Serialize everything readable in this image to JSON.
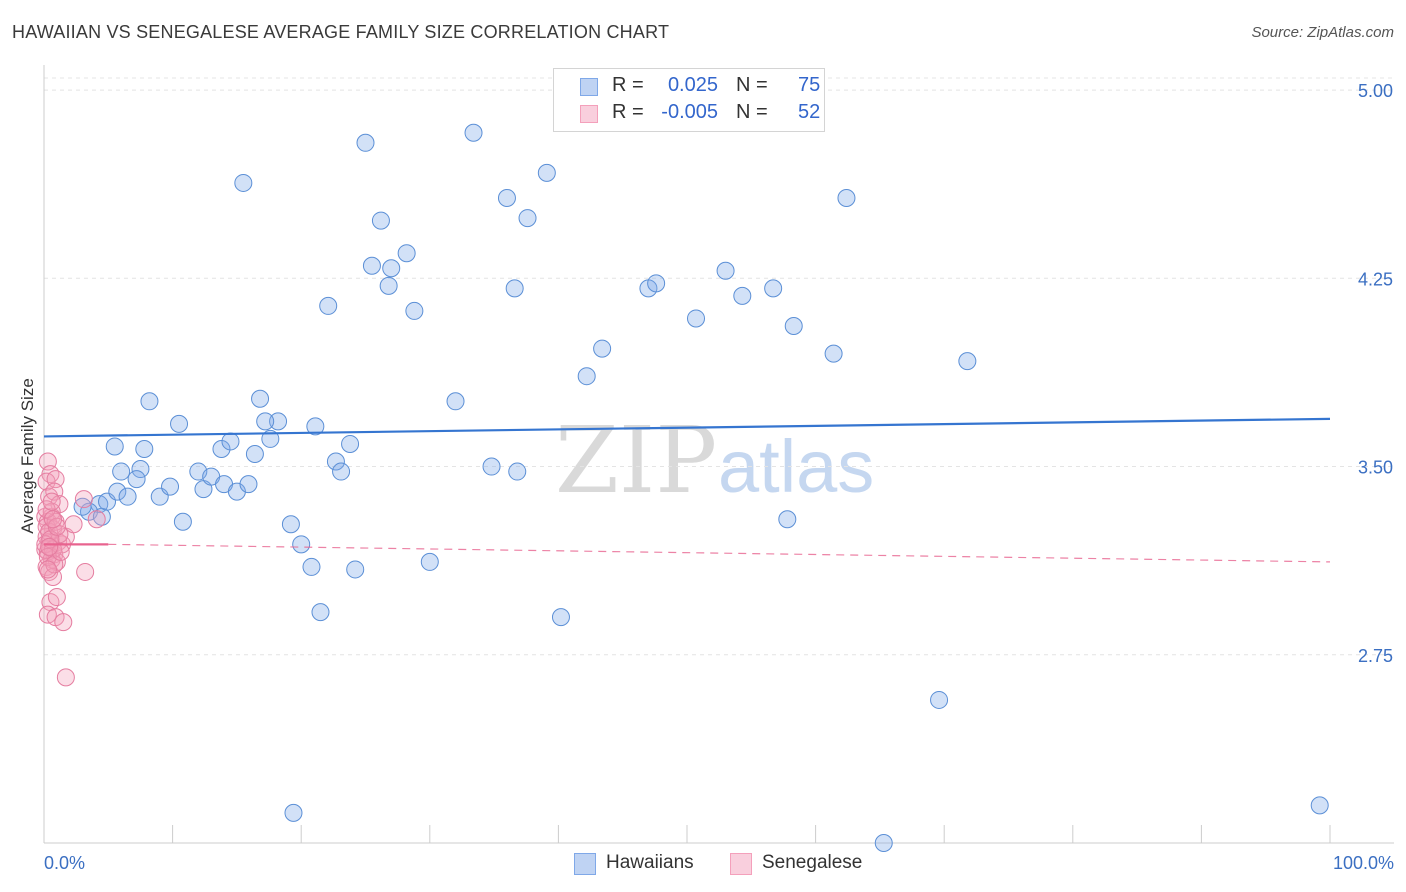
{
  "title": "HAWAIIAN VS SENEGALESE AVERAGE FAMILY SIZE CORRELATION CHART",
  "source": "Source: ZipAtlas.com",
  "watermark": {
    "zip": "ZIP",
    "atlas": "atlas"
  },
  "legend_box": {
    "rows": [
      {
        "r_label": "R =",
        "r_value": "0.025",
        "n_label": "N =",
        "n_value": "75",
        "color": "#7fa8e8"
      },
      {
        "r_label": "R =",
        "r_value": "-0.005",
        "n_label": "N =",
        "n_value": "52",
        "color": "#f4a0bb"
      }
    ]
  },
  "bottom_legend": {
    "items": [
      {
        "label": "Hawaiians",
        "color": "#7fa8e8"
      },
      {
        "label": "Senegalese",
        "color": "#f4a0bb"
      }
    ]
  },
  "chart_data": {
    "type": "scatter",
    "title": "HAWAIIAN VS SENEGALESE AVERAGE FAMILY SIZE CORRELATION CHART",
    "xlabel": "",
    "ylabel": "Average Family Size",
    "x_tick_labels": [
      "0.0%",
      "100.0%"
    ],
    "y_tick_labels": [
      "5.00",
      "4.25",
      "3.50",
      "2.75"
    ],
    "y_ticks": [
      5.0,
      4.25,
      3.5,
      2.75
    ],
    "xlim": [
      0,
      100
    ],
    "ylim": [
      2.0,
      5.08
    ],
    "grid": true,
    "legend_position": "top-center",
    "series": [
      {
        "name": "Hawaiians",
        "color": "#7fa8e8",
        "stroke": "#5b8fd6",
        "R": 0.025,
        "N": 75,
        "trend": {
          "x": [
            0,
            100
          ],
          "y": [
            3.62,
            3.69
          ],
          "style": "solid",
          "line_color": "#3575d0"
        },
        "points": [
          [
            4.3,
            3.35
          ],
          [
            3.5,
            3.32
          ],
          [
            3.0,
            3.34
          ],
          [
            4.5,
            3.3
          ],
          [
            4.9,
            3.36
          ],
          [
            5.5,
            3.58
          ],
          [
            6.0,
            3.48
          ],
          [
            5.7,
            3.4
          ],
          [
            6.5,
            3.38
          ],
          [
            7.5,
            3.49
          ],
          [
            7.2,
            3.45
          ],
          [
            8.2,
            3.76
          ],
          [
            9.0,
            3.38
          ],
          [
            7.8,
            3.57
          ],
          [
            9.8,
            3.42
          ],
          [
            10.8,
            3.28
          ],
          [
            10.5,
            3.67
          ],
          [
            12.0,
            3.48
          ],
          [
            12.4,
            3.41
          ],
          [
            13.0,
            3.46
          ],
          [
            13.8,
            3.57
          ],
          [
            14.0,
            3.43
          ],
          [
            14.5,
            3.6
          ],
          [
            15.0,
            3.4
          ],
          [
            15.9,
            3.43
          ],
          [
            16.4,
            3.55
          ],
          [
            16.8,
            3.77
          ],
          [
            17.6,
            3.61
          ],
          [
            18.2,
            3.68
          ],
          [
            15.5,
            4.63
          ],
          [
            17.2,
            3.68
          ],
          [
            19.2,
            3.27
          ],
          [
            20.0,
            3.19
          ],
          [
            21.1,
            3.66
          ],
          [
            20.8,
            3.1
          ],
          [
            22.1,
            4.14
          ],
          [
            23.8,
            3.59
          ],
          [
            21.5,
            2.92
          ],
          [
            24.2,
            3.09
          ],
          [
            22.7,
            3.52
          ],
          [
            23.1,
            3.48
          ],
          [
            25.5,
            4.3
          ],
          [
            26.8,
            4.22
          ],
          [
            28.8,
            4.12
          ],
          [
            26.2,
            4.48
          ],
          [
            28.2,
            4.35
          ],
          [
            27.0,
            4.29
          ],
          [
            30.0,
            3.12
          ],
          [
            32.0,
            3.76
          ],
          [
            33.4,
            4.83
          ],
          [
            34.8,
            3.5
          ],
          [
            36.0,
            4.57
          ],
          [
            36.6,
            4.21
          ],
          [
            36.8,
            3.48
          ],
          [
            37.6,
            4.49
          ],
          [
            39.1,
            4.67
          ],
          [
            40.2,
            2.9
          ],
          [
            42.2,
            3.86
          ],
          [
            43.4,
            3.97
          ],
          [
            47.0,
            4.21
          ],
          [
            47.6,
            4.23
          ],
          [
            50.7,
            4.09
          ],
          [
            53.0,
            4.28
          ],
          [
            54.3,
            4.18
          ],
          [
            56.7,
            4.21
          ],
          [
            58.3,
            4.06
          ],
          [
            57.8,
            3.29
          ],
          [
            61.4,
            3.95
          ],
          [
            62.4,
            4.57
          ],
          [
            69.6,
            2.57
          ],
          [
            71.8,
            3.92
          ],
          [
            99.2,
            2.15
          ],
          [
            19.4,
            2.12
          ],
          [
            25.0,
            4.79
          ],
          [
            65.3,
            2.0
          ]
        ]
      },
      {
        "name": "Senegalese",
        "color": "#f4a0bb",
        "stroke": "#e57da0",
        "R": -0.005,
        "N": 52,
        "trend": {
          "x": [
            0,
            5
          ],
          "y": [
            3.19,
            3.19
          ],
          "style": "solid",
          "line_color": "#e8638f",
          "ext_x": [
            5,
            100
          ],
          "ext_y": [
            3.19,
            3.12
          ],
          "ext_style": "dashed"
        },
        "points": [
          [
            0.3,
            3.52
          ],
          [
            0.5,
            3.47
          ],
          [
            0.2,
            3.44
          ],
          [
            0.9,
            3.45
          ],
          [
            0.4,
            3.38
          ],
          [
            0.8,
            3.4
          ],
          [
            1.2,
            3.35
          ],
          [
            0.6,
            3.3
          ],
          [
            0.1,
            3.3
          ],
          [
            0.3,
            3.28
          ],
          [
            0.7,
            3.25
          ],
          [
            0.2,
            3.22
          ],
          [
            0.4,
            3.2
          ],
          [
            0.5,
            3.18
          ],
          [
            0.1,
            3.17
          ],
          [
            0.3,
            3.16
          ],
          [
            0.8,
            3.15
          ],
          [
            0.6,
            3.13
          ],
          [
            0.2,
            3.1
          ],
          [
            1.0,
            3.12
          ],
          [
            0.4,
            3.08
          ],
          [
            0.7,
            3.06
          ],
          [
            1.1,
            3.2
          ],
          [
            1.4,
            3.19
          ],
          [
            1.7,
            3.22
          ],
          [
            2.3,
            3.27
          ],
          [
            3.1,
            3.37
          ],
          [
            3.2,
            3.08
          ],
          [
            4.1,
            3.29
          ],
          [
            0.5,
            2.96
          ],
          [
            0.3,
            2.91
          ],
          [
            0.9,
            2.9
          ],
          [
            1.5,
            2.88
          ],
          [
            1.7,
            2.66
          ],
          [
            1.0,
            2.98
          ],
          [
            0.2,
            3.26
          ],
          [
            0.6,
            3.32
          ],
          [
            0.4,
            3.24
          ],
          [
            0.9,
            3.28
          ],
          [
            0.1,
            3.19
          ],
          [
            0.7,
            3.17
          ],
          [
            0.3,
            3.14
          ],
          [
            1.2,
            3.23
          ],
          [
            0.5,
            3.21
          ],
          [
            0.8,
            3.11
          ],
          [
            0.2,
            3.33
          ],
          [
            0.6,
            3.36
          ],
          [
            1.3,
            3.16
          ],
          [
            0.4,
            3.18
          ],
          [
            1.0,
            3.26
          ],
          [
            0.3,
            3.09
          ],
          [
            0.7,
            3.29
          ]
        ]
      }
    ]
  }
}
